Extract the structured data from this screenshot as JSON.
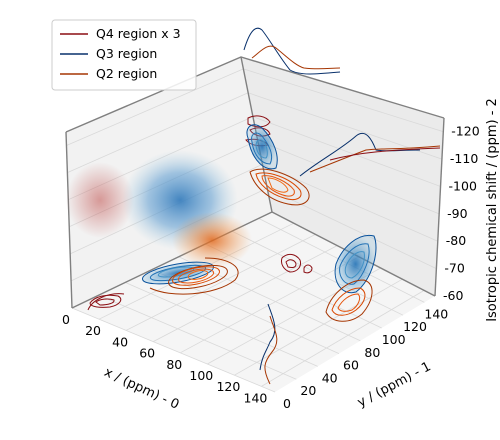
{
  "chart_data": {
    "type": "3d-contour",
    "xlabel": "x / (ppm) - 0",
    "ylabel": "y / (ppm) - 1",
    "zlabel": "Isotropic chemical shift / (ppm) - 2",
    "xticks": [
      "0",
      "20",
      "40",
      "60",
      "80",
      "100",
      "120",
      "140"
    ],
    "yticks": [
      "0",
      "20",
      "40",
      "60",
      "80",
      "100",
      "120",
      "140"
    ],
    "zticks": [
      "-60",
      "-70",
      "-80",
      "-90",
      "-100",
      "-110",
      "-120"
    ],
    "xlim": [
      0,
      150
    ],
    "ylim": [
      0,
      150
    ],
    "zlim": [
      -60,
      -125
    ],
    "grid": true,
    "legend_position": "upper-left",
    "series": [
      {
        "name": "Q4 region x 3",
        "color": "#8b0f14",
        "colormap": "reds",
        "x_center": 12,
        "y_center": 138,
        "z_center": -95
      },
      {
        "name": "Q3 region",
        "color": "#08306b",
        "colormap": "blues",
        "x_center": 60,
        "y_center": 86,
        "z_center": -105
      },
      {
        "name": "Q2 region",
        "color": "#a63603",
        "colormap": "oranges",
        "x_center": 78,
        "y_center": 68,
        "z_center": -88
      }
    ]
  }
}
